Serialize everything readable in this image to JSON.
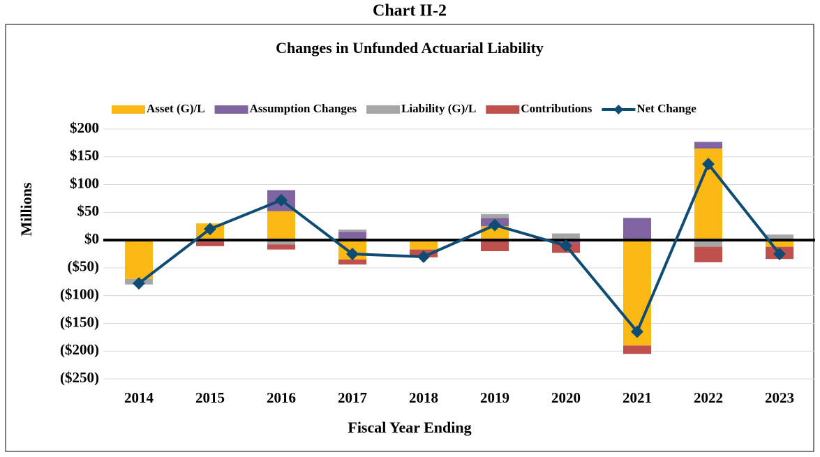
{
  "chart_data": {
    "type": "stacked_bar_line",
    "heading": "Chart II-2",
    "title": "Changes in Unfunded Actuarial Liability",
    "x_label": "Fiscal Year Ending",
    "y_label": "Millions",
    "categories": [
      "2014",
      "2015",
      "2016",
      "2017",
      "2018",
      "2019",
      "2020",
      "2021",
      "2022",
      "2023"
    ],
    "series": [
      {
        "name": "Asset (G)/L",
        "color": "#FDB913",
        "kind": "bar",
        "values": [
          -70,
          30,
          52,
          -35,
          -17,
          25,
          0,
          -190,
          165,
          -12
        ]
      },
      {
        "name": "Assumption Changes",
        "color": "#8064A2",
        "kind": "bar",
        "values": [
          0,
          0,
          38,
          15,
          0,
          15,
          -5,
          40,
          12,
          2
        ]
      },
      {
        "name": "Liability (G)/L",
        "color": "#A6A6A6",
        "kind": "bar",
        "values": [
          -10,
          -3,
          -8,
          4,
          0,
          7,
          12,
          0,
          -12,
          8
        ]
      },
      {
        "name": "Contributions",
        "color": "#C0504D",
        "kind": "bar",
        "values": [
          0,
          -8,
          -9,
          -9,
          -14,
          -20,
          -18,
          -15,
          -28,
          -22
        ]
      },
      {
        "name": "Net Change",
        "color": "#0E4C73",
        "kind": "line",
        "values": [
          -78,
          20,
          72,
          -25,
          -30,
          27,
          -10,
          -165,
          137,
          -25
        ]
      }
    ],
    "ylim": [
      -250,
      200
    ],
    "yticks": [
      {
        "value": -250,
        "label": "($250)"
      },
      {
        "value": -200,
        "label": "($200)"
      },
      {
        "value": -150,
        "label": "($150)"
      },
      {
        "value": -100,
        "label": "($100)"
      },
      {
        "value": -50,
        "label": "($50)"
      },
      {
        "value": 0,
        "label": "$0"
      },
      {
        "value": 50,
        "label": "$50"
      },
      {
        "value": 100,
        "label": "$100"
      },
      {
        "value": 150,
        "label": "$150"
      },
      {
        "value": 200,
        "label": "$200"
      }
    ],
    "grid": true
  }
}
